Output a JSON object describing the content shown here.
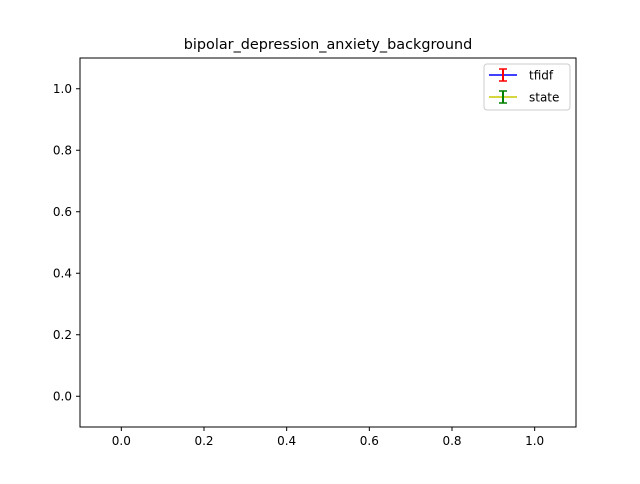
{
  "chart_data": {
    "type": "line",
    "title": "bipolar_depression_anxiety_background",
    "xlabel": "",
    "ylabel": "",
    "xlim": [
      -0.1,
      1.1
    ],
    "ylim": [
      -0.1,
      1.1
    ],
    "xticks": [
      "0.0",
      "0.2",
      "0.4",
      "0.6",
      "0.8",
      "1.0"
    ],
    "yticks": [
      "0.0",
      "0.2",
      "0.4",
      "0.6",
      "0.8",
      "1.0"
    ],
    "grid": false,
    "legend_position": "top-right",
    "series": [
      {
        "name": "tfidf",
        "line_color": "#0000ff",
        "errorbar_color": "#ff0000",
        "x": [],
        "y": []
      },
      {
        "name": "state",
        "line_color": "#c8c800",
        "errorbar_color": "#008000",
        "x": [],
        "y": []
      }
    ]
  }
}
